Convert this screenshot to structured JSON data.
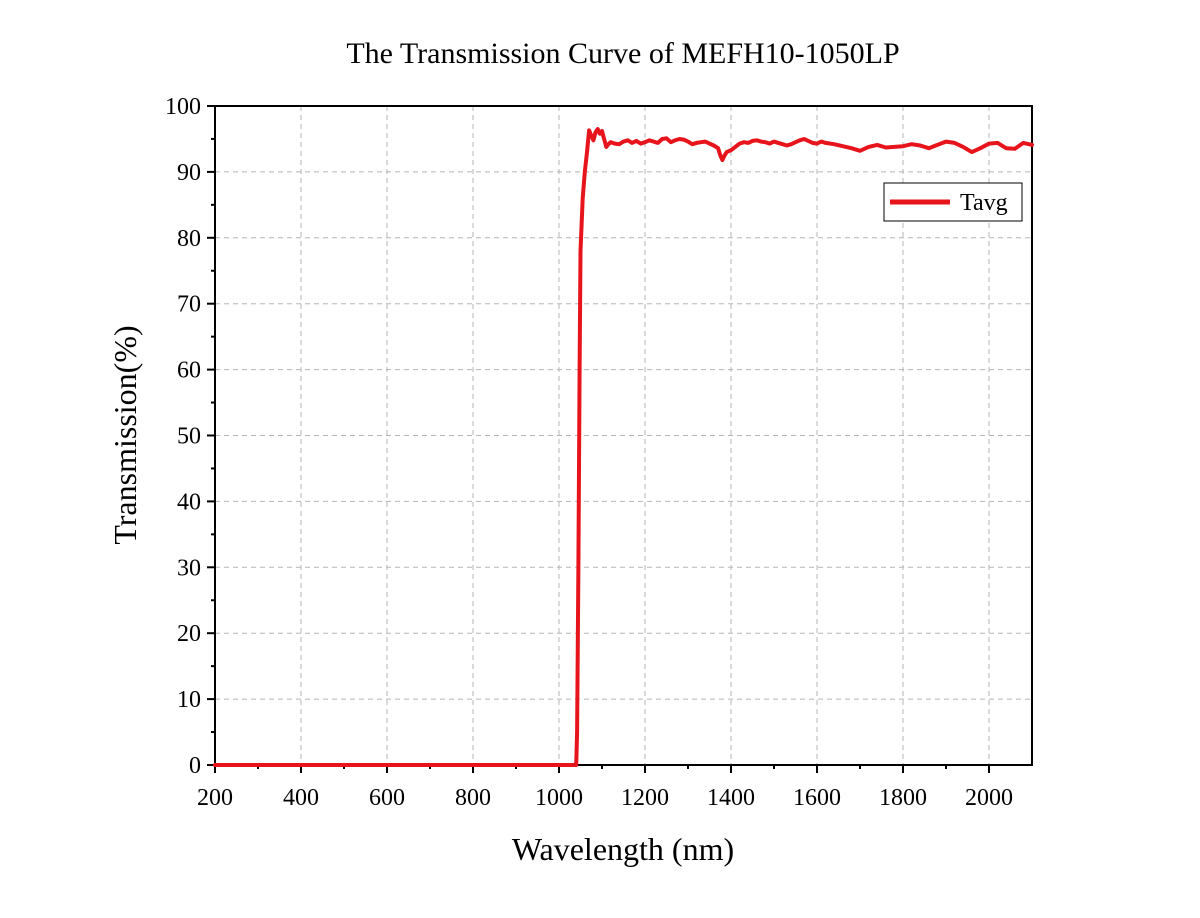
{
  "chart_data": {
    "type": "line",
    "title": "The Transmission Curve of MEFH10-1050LP",
    "xlabel": "Wavelength (nm)",
    "ylabel": "Transmission(%)",
    "xlim": [
      200,
      2100
    ],
    "ylim": [
      0,
      100
    ],
    "x_ticks": [
      200,
      400,
      600,
      800,
      1000,
      1200,
      1400,
      1600,
      1800,
      2000
    ],
    "y_ticks": [
      0,
      10,
      20,
      30,
      40,
      50,
      60,
      70,
      80,
      90,
      100
    ],
    "grid": true,
    "legend_position": "top-right",
    "series": [
      {
        "name": "Tavg",
        "color": "#e8141b",
        "x": [
          200,
          400,
          600,
          800,
          1000,
          1040,
          1042,
          1045,
          1048,
          1050,
          1055,
          1060,
          1065,
          1070,
          1075,
          1080,
          1085,
          1090,
          1095,
          1100,
          1105,
          1110,
          1115,
          1120,
          1130,
          1140,
          1150,
          1160,
          1170,
          1180,
          1190,
          1200,
          1210,
          1220,
          1230,
          1240,
          1250,
          1260,
          1270,
          1280,
          1290,
          1300,
          1310,
          1320,
          1330,
          1340,
          1350,
          1360,
          1370,
          1375,
          1380,
          1385,
          1390,
          1400,
          1410,
          1420,
          1430,
          1440,
          1450,
          1460,
          1470,
          1480,
          1490,
          1500,
          1510,
          1520,
          1530,
          1540,
          1550,
          1560,
          1570,
          1580,
          1590,
          1600,
          1610,
          1620,
          1640,
          1660,
          1680,
          1700,
          1720,
          1740,
          1760,
          1780,
          1800,
          1820,
          1840,
          1860,
          1880,
          1900,
          1920,
          1940,
          1960,
          1980,
          2000,
          2020,
          2040,
          2060,
          2080,
          2100
        ],
        "values": [
          0,
          0,
          0,
          0,
          0,
          0,
          5,
          30,
          60,
          78,
          86,
          90,
          93,
          96.3,
          95.5,
          94.8,
          96,
          96.5,
          95.8,
          96.2,
          95,
          93.8,
          94.2,
          94.5,
          94.3,
          94.2,
          94.6,
          94.8,
          94.4,
          94.7,
          94.3,
          94.5,
          94.8,
          94.6,
          94.4,
          95,
          95.1,
          94.5,
          94.8,
          95,
          94.9,
          94.6,
          94.2,
          94.4,
          94.5,
          94.6,
          94.3,
          94,
          93.6,
          92.5,
          91.8,
          92.5,
          93,
          93.3,
          93.8,
          94.3,
          94.5,
          94.4,
          94.7,
          94.8,
          94.6,
          94.5,
          94.3,
          94.6,
          94.4,
          94.2,
          94,
          94.2,
          94.5,
          94.8,
          95,
          94.7,
          94.4,
          94.3,
          94.6,
          94.4,
          94.2,
          93.9,
          93.6,
          93.2,
          93.8,
          94.1,
          93.7,
          93.8,
          93.9,
          94.2,
          94,
          93.6,
          94.1,
          94.6,
          94.4,
          93.8,
          93,
          93.6,
          94.3,
          94.4,
          93.6,
          93.5,
          94.4,
          94.1
        ]
      }
    ]
  }
}
